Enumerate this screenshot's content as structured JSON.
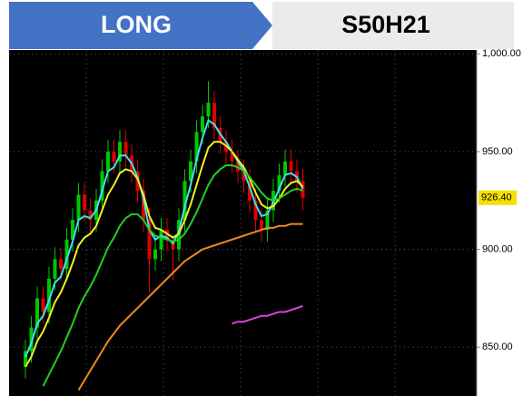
{
  "header": {
    "signal": "LONG",
    "symbol": "S50H21"
  },
  "chart_data": {
    "type": "candlestick",
    "open": [
      840,
      848,
      860,
      875,
      868,
      885,
      895,
      890,
      905,
      915,
      928,
      920,
      915,
      925,
      940,
      950,
      945,
      955,
      948,
      940,
      930,
      915,
      895,
      900,
      910,
      905,
      900,
      915,
      935,
      945,
      960,
      968,
      975,
      962,
      955,
      950,
      945,
      940,
      935,
      925,
      915,
      910,
      920,
      930,
      938,
      945,
      940,
      935
    ],
    "high": [
      854,
      866,
      881,
      881,
      891,
      901,
      901,
      911,
      921,
      934,
      934,
      926,
      931,
      946,
      956,
      956,
      961,
      961,
      954,
      946,
      936,
      921,
      906,
      916,
      916,
      906,
      921,
      941,
      951,
      966,
      974,
      986,
      981,
      968,
      961,
      956,
      951,
      946,
      941,
      931,
      921,
      926,
      936,
      944,
      951,
      951,
      946,
      941
    ],
    "low": [
      834,
      842,
      854,
      862,
      862,
      879,
      884,
      884,
      899,
      909,
      914,
      909,
      909,
      919,
      934,
      939,
      939,
      942,
      934,
      924,
      909,
      878,
      889,
      894,
      899,
      884,
      894,
      909,
      929,
      939,
      954,
      962,
      956,
      949,
      944,
      939,
      934,
      929,
      919,
      909,
      904,
      904,
      914,
      924,
      932,
      934,
      929,
      920
    ],
    "close": [
      848,
      860,
      875,
      868,
      885,
      895,
      890,
      905,
      915,
      928,
      920,
      915,
      925,
      940,
      950,
      945,
      955,
      948,
      940,
      930,
      915,
      895,
      900,
      910,
      905,
      900,
      915,
      935,
      945,
      960,
      968,
      975,
      962,
      955,
      950,
      945,
      940,
      935,
      925,
      915,
      910,
      920,
      930,
      938,
      945,
      940,
      935,
      926.4
    ],
    "up_color": "#00c800",
    "down_color": "#e00000",
    "series": [
      {
        "color": "#40e0f0",
        "values": [
          845,
          852,
          862,
          866,
          874,
          883,
          886,
          895,
          904,
          915,
          917,
          916,
          920,
          930,
          940,
          942,
          948,
          948,
          944,
          937,
          926,
          910,
          905,
          907,
          906,
          903,
          909,
          922,
          933,
          946,
          957,
          966,
          964,
          959,
          955,
          950,
          945,
          940,
          932,
          923,
          917,
          918,
          924,
          931,
          938,
          939,
          937,
          931
        ]
      },
      {
        "color": "#f0f020",
        "values": [
          840,
          845,
          853,
          858,
          865,
          873,
          878,
          885,
          893,
          902,
          906,
          908,
          912,
          920,
          928,
          933,
          939,
          941,
          940,
          936,
          928,
          917,
          911,
          910,
          908,
          906,
          908,
          915,
          923,
          933,
          943,
          952,
          955,
          955,
          953,
          950,
          946,
          942,
          936,
          929,
          923,
          921,
          922,
          926,
          931,
          934,
          935,
          932
        ]
      },
      {
        "color": "#20d020",
        "values": [
          null,
          null,
          null,
          830,
          836,
          842,
          848,
          855,
          862,
          870,
          876,
          881,
          887,
          894,
          901,
          906,
          912,
          916,
          918,
          918,
          915,
          910,
          907,
          906,
          905,
          904,
          905,
          908,
          913,
          919,
          926,
          933,
          938,
          941,
          943,
          943,
          942,
          940,
          937,
          933,
          929,
          926,
          925,
          926,
          928,
          930,
          931,
          930
        ]
      },
      {
        "color": "#f08a20",
        "values": [
          null,
          null,
          null,
          null,
          null,
          null,
          null,
          null,
          null,
          828,
          833,
          838,
          843,
          848,
          853,
          857,
          861,
          864,
          867,
          870,
          873,
          876,
          879,
          882,
          885,
          888,
          891,
          894,
          896,
          898,
          900,
          901,
          902,
          903,
          904,
          905,
          906,
          907,
          908,
          909,
          910,
          911,
          911,
          912,
          912,
          913,
          913,
          913
        ]
      },
      {
        "color": "#e040e0",
        "values": [
          null,
          null,
          null,
          null,
          null,
          null,
          null,
          null,
          null,
          null,
          null,
          null,
          null,
          null,
          null,
          null,
          null,
          null,
          null,
          null,
          null,
          null,
          null,
          null,
          null,
          null,
          null,
          null,
          null,
          null,
          null,
          null,
          null,
          null,
          null,
          862,
          863,
          863,
          864,
          865,
          866,
          866,
          867,
          868,
          868,
          869,
          870,
          871
        ]
      }
    ],
    "ylim": [
      825,
      1002
    ],
    "yticks": [
      {
        "value": 850,
        "label": "850.00"
      },
      {
        "value": 900,
        "label": "900.00"
      },
      {
        "value": 950,
        "label": "950.00"
      },
      {
        "value": 1000,
        "label": "1,000.00"
      }
    ],
    "last_price": {
      "value": 926.4,
      "label": "926.40"
    },
    "grid": true
  }
}
